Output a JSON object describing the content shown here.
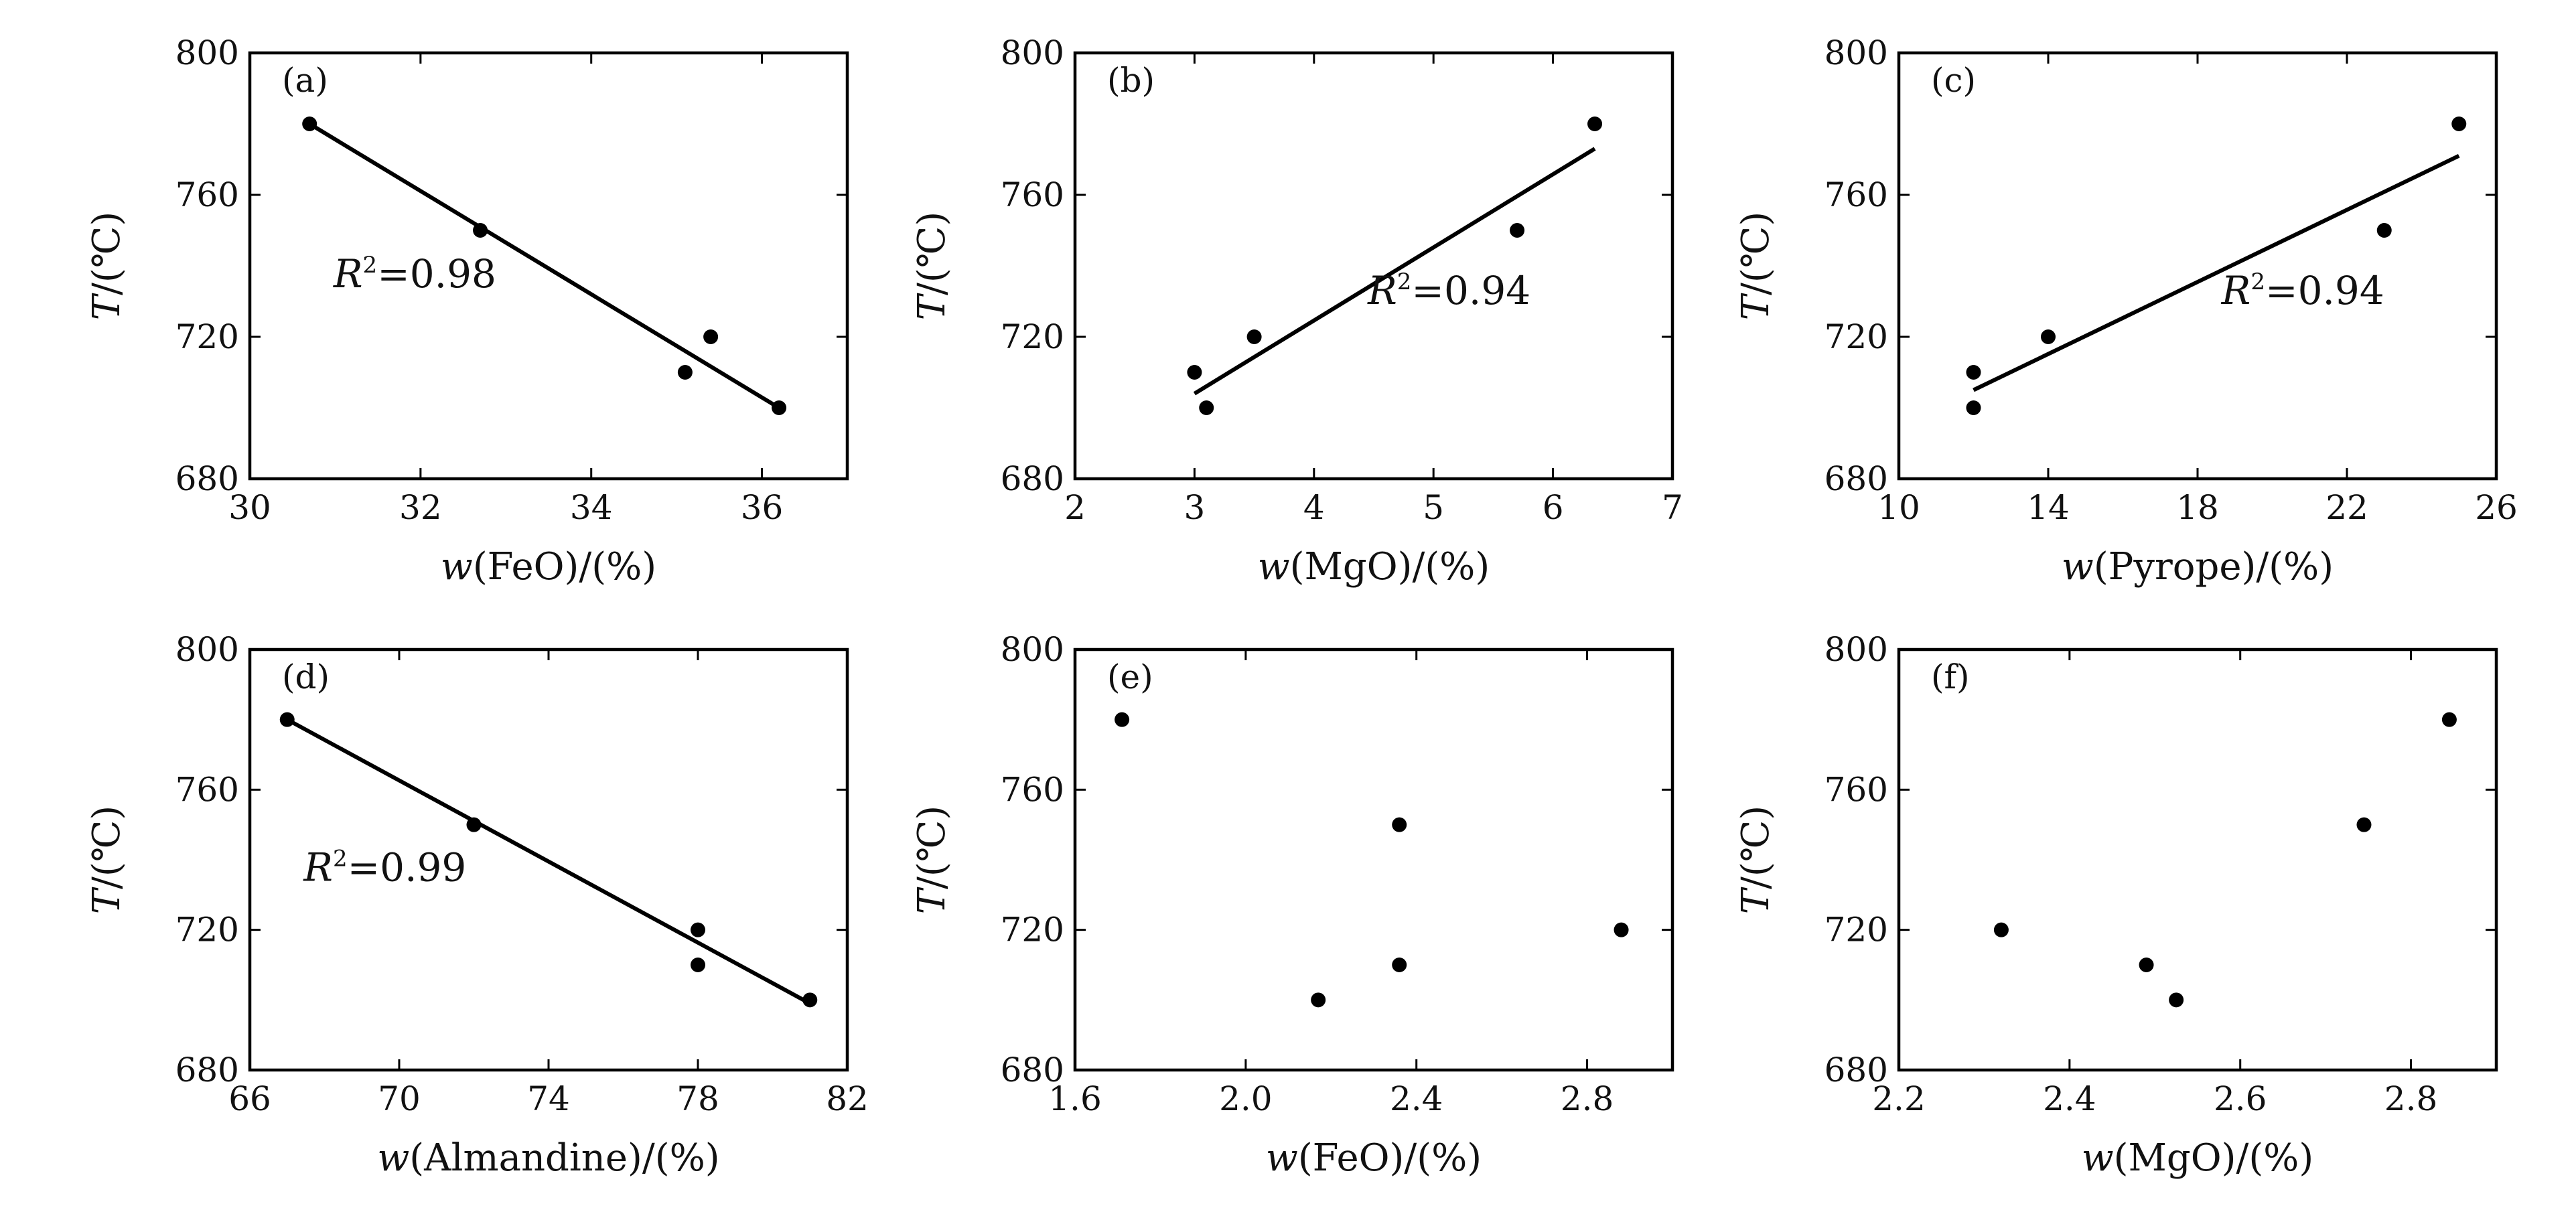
{
  "colors": {
    "axis": "#000000",
    "point": "#000000",
    "line": "#000000",
    "background": "#ffffff"
  },
  "chart_data": [
    {
      "type": "scatter",
      "panel": "(a)",
      "xlabel_var": "w",
      "xlabel_text": "(FeO)/(%)",
      "ylabel_var": "T",
      "ylabel_text": "/(℃)",
      "xlim": [
        30,
        37
      ],
      "ylim": [
        680,
        800
      ],
      "xticks": [
        30,
        32,
        34,
        36
      ],
      "xtick_labels": [
        "30",
        "32",
        "34",
        "36"
      ],
      "yticks": [
        680,
        720,
        760,
        800
      ],
      "ytick_labels": [
        "680",
        "720",
        "760",
        "800"
      ],
      "x": [
        30.7,
        32.7,
        35.1,
        35.4,
        36.2
      ],
      "y": [
        780,
        750,
        710,
        720,
        700
      ],
      "fit_line": {
        "x": [
          30.7,
          36.2
        ],
        "y": [
          780,
          700
        ]
      },
      "r2_label": {
        "var": "R",
        "sup": "2",
        "text": "=0.98"
      }
    },
    {
      "type": "scatter",
      "panel": "(b)",
      "xlabel_var": "w",
      "xlabel_text": "(MgO)/(%)",
      "ylabel_var": "T",
      "ylabel_text": "/(℃)",
      "xlim": [
        2,
        7
      ],
      "ylim": [
        680,
        800
      ],
      "xticks": [
        2,
        3,
        4,
        5,
        6,
        7
      ],
      "xtick_labels": [
        "2",
        "3",
        "4",
        "5",
        "6",
        "7"
      ],
      "yticks": [
        680,
        720,
        760,
        800
      ],
      "ytick_labels": [
        "680",
        "720",
        "760",
        "800"
      ],
      "x": [
        3.0,
        3.1,
        3.5,
        5.7,
        6.35
      ],
      "y": [
        710,
        700,
        720,
        750,
        780
      ],
      "fit_line": {
        "x": [
          3.0,
          6.35
        ],
        "y": [
          704,
          773
        ]
      },
      "r2_label": {
        "var": "R",
        "sup": "2",
        "text": "=0.94"
      }
    },
    {
      "type": "scatter",
      "panel": "(c)",
      "xlabel_var": "w",
      "xlabel_text": "(Pyrope)/(%)",
      "ylabel_var": "T",
      "ylabel_text": "/(℃)",
      "xlim": [
        10,
        26
      ],
      "ylim": [
        680,
        800
      ],
      "xticks": [
        10,
        14,
        18,
        22,
        26
      ],
      "xtick_labels": [
        "10",
        "14",
        "18",
        "22",
        "26"
      ],
      "yticks": [
        680,
        720,
        760,
        800
      ],
      "ytick_labels": [
        "680",
        "720",
        "760",
        "800"
      ],
      "x": [
        12.0,
        12.0,
        14.0,
        23.0,
        25.0
      ],
      "y": [
        710,
        700,
        720,
        750,
        780
      ],
      "fit_line": {
        "x": [
          12.0,
          25.0
        ],
        "y": [
          705,
          771
        ]
      },
      "r2_label": {
        "var": "R",
        "sup": "2",
        "text": "=0.94"
      }
    },
    {
      "type": "scatter",
      "panel": "(d)",
      "xlabel_var": "w",
      "xlabel_text": "(Almandine)/(%)",
      "ylabel_var": "T",
      "ylabel_text": "/(℃)",
      "xlim": [
        66,
        82
      ],
      "ylim": [
        680,
        800
      ],
      "xticks": [
        66,
        70,
        74,
        78,
        82
      ],
      "xtick_labels": [
        "66",
        "70",
        "74",
        "78",
        "82"
      ],
      "yticks": [
        680,
        720,
        760,
        800
      ],
      "ytick_labels": [
        "680",
        "720",
        "760",
        "800"
      ],
      "x": [
        67.0,
        72.0,
        78.0,
        78.0,
        81.0
      ],
      "y": [
        780,
        750,
        720,
        710,
        700
      ],
      "fit_line": {
        "x": [
          67.0,
          81.0
        ],
        "y": [
          780,
          699
        ]
      },
      "r2_label": {
        "var": "R",
        "sup": "2",
        "text": "=0.99"
      }
    },
    {
      "type": "scatter",
      "panel": "(e)",
      "xlabel_var": "w",
      "xlabel_text": "(FeO)/(%)",
      "ylabel_var": "T",
      "ylabel_text": "/(℃)",
      "xlim": [
        1.6,
        3.0
      ],
      "ylim": [
        680,
        800
      ],
      "xticks": [
        1.6,
        2.0,
        2.4,
        2.8
      ],
      "xtick_labels": [
        "1.6",
        "2.0",
        "2.4",
        "2.8"
      ],
      "yticks": [
        680,
        720,
        760,
        800
      ],
      "ytick_labels": [
        "680",
        "720",
        "760",
        "800"
      ],
      "x": [
        1.71,
        2.17,
        2.36,
        2.36,
        2.88
      ],
      "y": [
        780,
        700,
        750,
        710,
        720
      ]
    },
    {
      "type": "scatter",
      "panel": "(f)",
      "xlabel_var": "w",
      "xlabel_text": "(MgO)/(%)",
      "ylabel_var": "T",
      "ylabel_text": "/(℃)",
      "xlim": [
        2.2,
        2.9
      ],
      "ylim": [
        680,
        800
      ],
      "xticks": [
        2.2,
        2.4,
        2.6,
        2.8
      ],
      "xtick_labels": [
        "2.2",
        "2.4",
        "2.6",
        "2.8"
      ],
      "yticks": [
        680,
        720,
        760,
        800
      ],
      "ytick_labels": [
        "680",
        "720",
        "760",
        "800"
      ],
      "x": [
        2.32,
        2.49,
        2.525,
        2.745,
        2.845
      ],
      "y": [
        720,
        710,
        700,
        750,
        780
      ]
    }
  ]
}
